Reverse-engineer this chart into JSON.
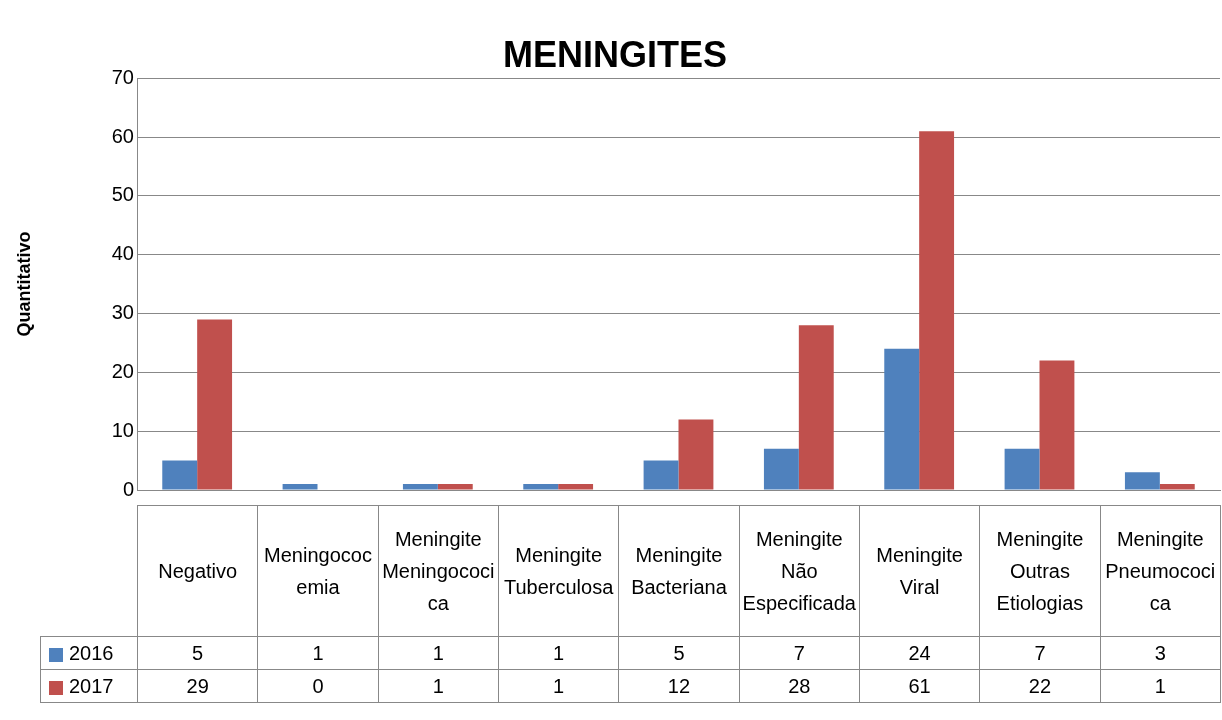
{
  "chart_data": {
    "type": "bar",
    "title": "MENINGITES",
    "ylabel": "Quantitativo",
    "categories": [
      "Negativo",
      "Meningococemia",
      "Meningite Meningococica",
      "Meningite Tuberculosa",
      "Meningite Bacteriana",
      "Meningite Não Especificada",
      "Meningite Viral",
      "Meningite Outras Etiologias",
      "Meningite Pneumococica"
    ],
    "series": [
      {
        "name": "2016",
        "color": "#4f81bd",
        "values": [
          5,
          1,
          1,
          1,
          5,
          7,
          24,
          7,
          3
        ]
      },
      {
        "name": "2017",
        "color": "#c0504d",
        "values": [
          29,
          0,
          1,
          1,
          12,
          28,
          61,
          22,
          1
        ]
      }
    ],
    "ylim": [
      0,
      70
    ],
    "yticks": [
      0,
      10,
      20,
      30,
      40,
      50,
      60,
      70
    ],
    "grid": "y",
    "legend": "bottom",
    "data_labels": true
  }
}
